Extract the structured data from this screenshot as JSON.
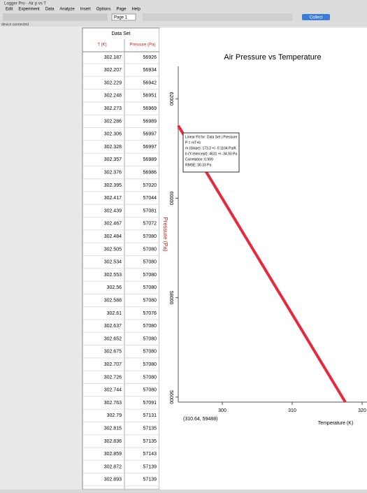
{
  "window_title": "Logger Pro - Air p vs T",
  "menu": [
    "Edit",
    "Experiment",
    "Data",
    "Analyze",
    "Insert",
    "Options",
    "Page",
    "Help"
  ],
  "toolbar": {
    "page": "Page 1",
    "collect": "Collect"
  },
  "status": "device connected",
  "table": {
    "title": "Data Set",
    "columns": [
      "T (K)",
      "Pressure (Pa)"
    ],
    "rows": [
      [
        302.187,
        56926
      ],
      [
        302.207,
        56934
      ],
      [
        302.229,
        56942
      ],
      [
        302.248,
        56951
      ],
      [
        302.273,
        56969
      ],
      [
        302.286,
        56989
      ],
      [
        302.306,
        56997
      ],
      [
        302.328,
        56997
      ],
      [
        302.357,
        56989
      ],
      [
        302.376,
        56986
      ],
      [
        302.395,
        57020
      ],
      [
        302.417,
        57044
      ],
      [
        302.439,
        57081
      ],
      [
        302.467,
        57072
      ],
      [
        302.484,
        57080
      ],
      [
        302.505,
        57080
      ],
      [
        302.534,
        57080
      ],
      [
        302.553,
        57080
      ],
      [
        302.56,
        57080
      ],
      [
        302.588,
        57080
      ],
      [
        302.61,
        57076
      ],
      [
        302.637,
        57080
      ],
      [
        302.652,
        57080
      ],
      [
        302.675,
        57080
      ],
      [
        302.707,
        57080
      ],
      [
        302.726,
        57080
      ],
      [
        302.744,
        57080
      ],
      [
        302.763,
        57091
      ],
      [
        302.79,
        57131
      ],
      [
        302.815,
        57135
      ],
      [
        302.836,
        57135
      ],
      [
        302.859,
        57143
      ],
      [
        302.872,
        57139
      ],
      [
        302.893,
        57139
      ]
    ]
  },
  "chart_data": {
    "type": "line",
    "title": "Air Pressure vs Temperature",
    "x_label": "Temperature (K)",
    "y_label": "Pressure (Pa)",
    "x": [
      293.7,
      300,
      310,
      317.6
    ],
    "values": [
      61460,
      59994,
      57668,
      55900
    ],
    "color": "#e8283c",
    "xlim": [
      293.7,
      320.7
    ],
    "ylim": [
      55900,
      62650
    ],
    "xticks": [
      300,
      310,
      320
    ],
    "yticks": [
      56000,
      58000,
      60000,
      62000
    ],
    "annotation": [
      "Linear Fit for: Data Set | Pressure",
      "P = mT+b",
      "m (Slope): 173.3 +/- 0.1104 Pa/K",
      "b (Y-Intercept): 4631 +/- 34.93 Pa",
      "Correlation: 0.999",
      "RMSE: 30.33 Pa"
    ],
    "cursor_readout": "(310.64, 59488)"
  }
}
